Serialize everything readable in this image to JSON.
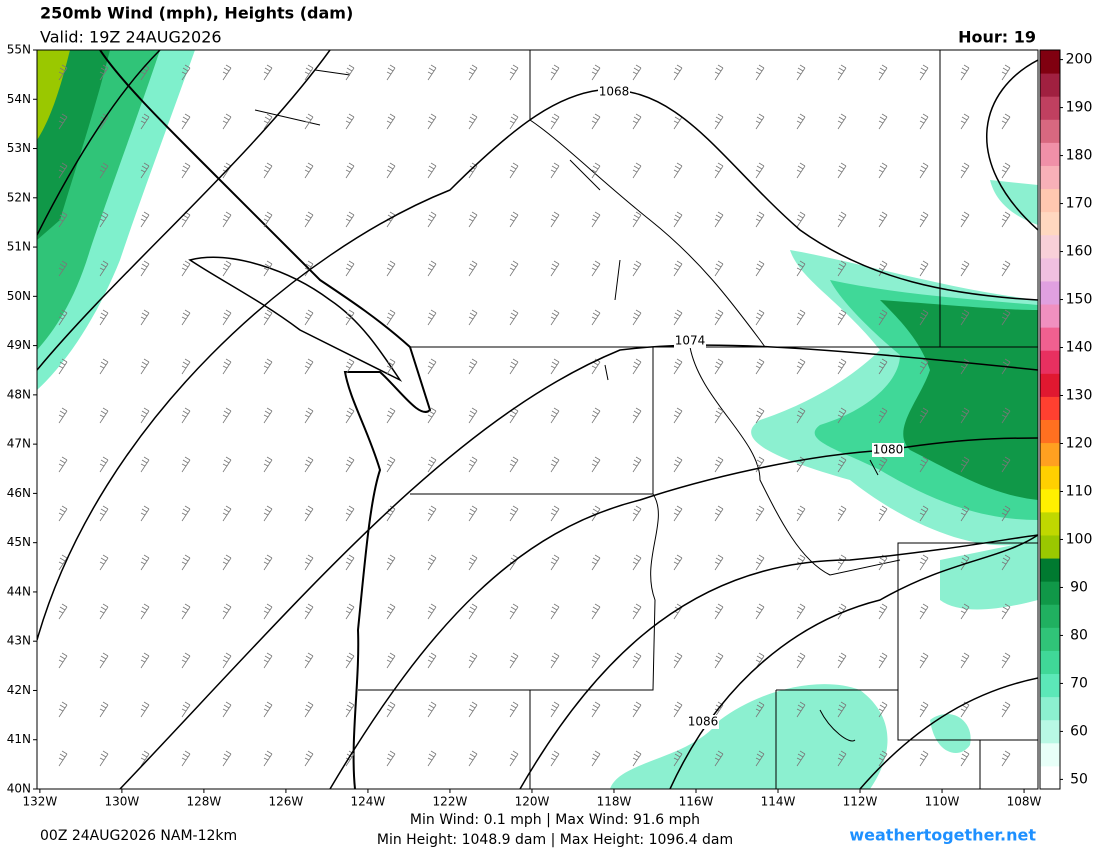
{
  "header": {
    "title": "250mb Wind (mph), Heights (dam)",
    "valid": "Valid: 19Z 24AUG2026",
    "hour": "Hour: 19"
  },
  "map": {
    "lonlim": [
      -132.07,
      -107.66
    ],
    "latlim": [
      40,
      55
    ],
    "lat_ticks": [
      {
        "value": 55,
        "label": "55N"
      },
      {
        "value": 54,
        "label": "54N"
      },
      {
        "value": 53,
        "label": "53N"
      },
      {
        "value": 52,
        "label": "52N"
      },
      {
        "value": 51,
        "label": "51N"
      },
      {
        "value": 50,
        "label": "50N"
      },
      {
        "value": 49,
        "label": "49N"
      },
      {
        "value": 48,
        "label": "48N"
      },
      {
        "value": 47,
        "label": "47N"
      },
      {
        "value": 46,
        "label": "46N"
      },
      {
        "value": 45,
        "label": "45N"
      },
      {
        "value": 44,
        "label": "44N"
      },
      {
        "value": 43,
        "label": "43N"
      },
      {
        "value": 42,
        "label": "42N"
      },
      {
        "value": 41,
        "label": "41N"
      },
      {
        "value": 40,
        "label": "40N"
      }
    ],
    "lon_ticks": [
      {
        "value": -132,
        "label": "132W"
      },
      {
        "value": -130,
        "label": "130W"
      },
      {
        "value": -128,
        "label": "128W"
      },
      {
        "value": -126,
        "label": "126W"
      },
      {
        "value": -124,
        "label": "124W"
      },
      {
        "value": -122,
        "label": "122W"
      },
      {
        "value": -120,
        "label": "120W"
      },
      {
        "value": -118,
        "label": "118W"
      },
      {
        "value": -116,
        "label": "116W"
      },
      {
        "value": -114,
        "label": "114W"
      },
      {
        "value": -112,
        "label": "112W"
      },
      {
        "value": -110,
        "label": "110W"
      },
      {
        "value": -108,
        "label": "108W"
      }
    ],
    "contour_labels": [
      "1068",
      "1074",
      "1080",
      "1086"
    ]
  },
  "colorbar": {
    "lim": [
      48,
      202
    ],
    "ticks": [
      50,
      60,
      70,
      80,
      90,
      100,
      110,
      120,
      130,
      140,
      150,
      160,
      170,
      180,
      190,
      200
    ],
    "colors": [
      "#ffffff",
      "#e8fff8",
      "#b8f8e4",
      "#8cf0d0",
      "#5ce8b8",
      "#40d898",
      "#30c478",
      "#20b060",
      "#109848",
      "#007a30",
      "#9ac800",
      "#c0d800",
      "#fff000",
      "#ffd000",
      "#ffa020",
      "#ff7020",
      "#ff4030",
      "#e01830",
      "#e83060",
      "#f06090",
      "#f090c0",
      "#e0a0e0",
      "#f0c0e0",
      "#f8d0d8",
      "#ffd8c0",
      "#ffc8b0",
      "#f8b0b8",
      "#f090a8",
      "#d86880",
      "#c04060",
      "#a02040",
      "#800010"
    ]
  },
  "footer": {
    "model": "00Z 24AUG2026 NAM-12km",
    "wind": "Min Wind:  0.1 mph | Max Wind:  91.6 mph",
    "height": "Min Height: 1048.9 dam | Max Height: 1096.4 dam",
    "site": "weathertogether.net"
  }
}
